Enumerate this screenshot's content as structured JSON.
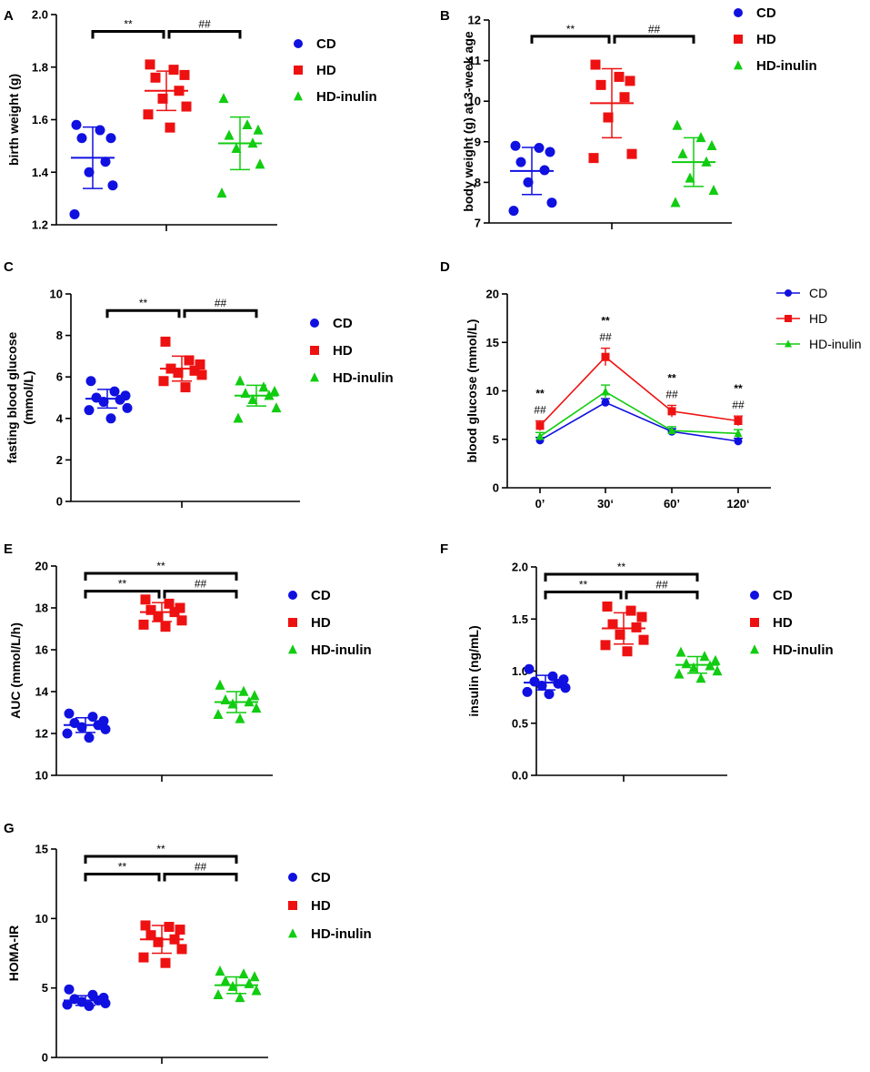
{
  "colors": {
    "CD": "#1010e0",
    "HD": "#ee1111",
    "HD-inulin": "#11cc11"
  },
  "chart_data": [
    {
      "id": "A",
      "type": "scatter",
      "panel_label": "A",
      "ylabel": "birth weight (g)",
      "ylim": [
        1.2,
        2.0
      ],
      "yticks": [
        "1.2",
        "1.4",
        "1.6",
        "1.8",
        "2.0"
      ],
      "legend": [
        "CD",
        "HD",
        "HD-inulin"
      ],
      "series": [
        {
          "name": "CD",
          "marker": "circle",
          "values": [
            1.58,
            1.56,
            1.53,
            1.53,
            1.44,
            1.4,
            1.35,
            1.24
          ],
          "mean": 1.455,
          "sd": 0.117
        },
        {
          "name": "HD",
          "marker": "square",
          "values": [
            1.81,
            1.79,
            1.77,
            1.76,
            1.71,
            1.68,
            1.65,
            1.62,
            1.57
          ],
          "mean": 1.71,
          "sd": 0.075
        },
        {
          "name": "HD-inulin",
          "marker": "triangle",
          "values": [
            1.68,
            1.58,
            1.56,
            1.54,
            1.51,
            1.49,
            1.43,
            1.32
          ],
          "mean": 1.51,
          "sd": 0.1
        }
      ],
      "brackets": [
        {
          "from": 0,
          "to": 1,
          "label": "**"
        },
        {
          "from": 1,
          "to": 2,
          "label": "##"
        }
      ]
    },
    {
      "id": "B",
      "type": "scatter",
      "panel_label": "B",
      "ylabel": "body weight (g) at 3-week age",
      "ylim": [
        7,
        12
      ],
      "yticks": [
        "7",
        "8",
        "9",
        "10",
        "11",
        "12"
      ],
      "legend": [
        "CD",
        "HD",
        "HD-inulin"
      ],
      "series": [
        {
          "name": "CD",
          "marker": "circle",
          "values": [
            8.9,
            8.85,
            8.75,
            8.5,
            8.3,
            8.0,
            7.5,
            7.3
          ],
          "mean": 8.28,
          "sd": 0.58
        },
        {
          "name": "HD",
          "marker": "square",
          "values": [
            10.9,
            10.6,
            10.5,
            10.4,
            10.1,
            9.6,
            8.7,
            8.6
          ],
          "mean": 9.95,
          "sd": 0.85
        },
        {
          "name": "HD-inulin",
          "marker": "triangle",
          "values": [
            9.4,
            9.1,
            8.9,
            8.7,
            8.5,
            8.1,
            7.8,
            7.5
          ],
          "mean": 8.5,
          "sd": 0.6
        }
      ],
      "brackets": [
        {
          "from": 0,
          "to": 1,
          "label": "**"
        },
        {
          "from": 1,
          "to": 2,
          "label": "##"
        }
      ]
    },
    {
      "id": "C",
      "type": "scatter",
      "panel_label": "C",
      "ylabel_lines": [
        "fasting blood glucose",
        "(mmol/L)"
      ],
      "ylim": [
        0,
        10
      ],
      "yticks": [
        "0",
        "2",
        "4",
        "6",
        "8",
        "10"
      ],
      "legend": [
        "CD",
        "HD",
        "HD-inulin"
      ],
      "series": [
        {
          "name": "CD",
          "marker": "circle",
          "values": [
            5.8,
            5.3,
            5.1,
            5.0,
            4.9,
            4.8,
            4.5,
            4.4,
            4.0
          ],
          "mean": 4.95,
          "sd": 0.45
        },
        {
          "name": "HD",
          "marker": "square",
          "values": [
            7.7,
            6.8,
            6.6,
            6.4,
            6.3,
            6.2,
            6.1,
            5.8,
            5.5
          ],
          "mean": 6.4,
          "sd": 0.6
        },
        {
          "name": "HD-inulin",
          "marker": "triangle",
          "values": [
            5.8,
            5.5,
            5.3,
            5.2,
            5.1,
            4.9,
            4.5,
            4.0
          ],
          "mean": 5.1,
          "sd": 0.5
        }
      ],
      "brackets": [
        {
          "from": 0,
          "to": 1,
          "label": "**"
        },
        {
          "from": 1,
          "to": 2,
          "label": "##"
        }
      ]
    },
    {
      "id": "D",
      "type": "line",
      "panel_label": "D",
      "ylabel": "blood glucose (mmol/L)",
      "ylim": [
        0,
        20
      ],
      "yticks": [
        "0",
        "5",
        "10",
        "15",
        "20"
      ],
      "categories": [
        "0’",
        "30‘",
        "60’",
        "120‘"
      ],
      "legend": [
        "CD",
        "HD",
        "HD-inulin"
      ],
      "series": [
        {
          "name": "CD",
          "marker": "circle",
          "values": [
            4.9,
            8.8,
            5.8,
            4.8
          ],
          "err": [
            0.3,
            0.4,
            0.3,
            0.3
          ]
        },
        {
          "name": "HD",
          "marker": "square",
          "values": [
            6.4,
            13.5,
            7.9,
            6.9
          ],
          "err": [
            0.5,
            0.9,
            0.6,
            0.5
          ]
        },
        {
          "name": "HD-inulin",
          "marker": "triangle",
          "values": [
            5.3,
            9.9,
            5.9,
            5.6
          ],
          "err": [
            0.4,
            0.7,
            0.4,
            0.4
          ]
        }
      ],
      "annotations": [
        {
          "category": 0,
          "star": "**",
          "hash": "##"
        },
        {
          "category": 1,
          "star": "**",
          "hash": "##"
        },
        {
          "category": 2,
          "star": "**",
          "hash": "##"
        },
        {
          "category": 3,
          "star": "**",
          "hash": "##"
        }
      ]
    },
    {
      "id": "E",
      "type": "scatter",
      "panel_label": "E",
      "ylabel": "AUC (mmol/L/h)",
      "ylim": [
        10,
        20
      ],
      "yticks": [
        "10",
        "12",
        "14",
        "16",
        "18",
        "20"
      ],
      "legend": [
        "CD",
        "HD",
        "HD-inulin"
      ],
      "series": [
        {
          "name": "CD",
          "marker": "circle",
          "values": [
            12.95,
            12.8,
            12.6,
            12.5,
            12.4,
            12.3,
            12.2,
            12.0,
            11.8
          ],
          "mean": 12.4,
          "sd": 0.35
        },
        {
          "name": "HD",
          "marker": "square",
          "values": [
            18.4,
            18.2,
            18.0,
            17.9,
            17.8,
            17.6,
            17.4,
            17.2,
            17.1
          ],
          "mean": 17.8,
          "sd": 0.45
        },
        {
          "name": "HD-inulin",
          "marker": "triangle",
          "values": [
            14.3,
            14.0,
            13.8,
            13.6,
            13.5,
            13.4,
            13.2,
            12.9,
            12.7
          ],
          "mean": 13.5,
          "sd": 0.5
        }
      ],
      "brackets": [
        {
          "from": 0,
          "to": 1,
          "label": "**"
        },
        {
          "from": 1,
          "to": 2,
          "label": "##"
        },
        {
          "from": 0,
          "to": 2,
          "label": "**",
          "top": true
        }
      ]
    },
    {
      "id": "F",
      "type": "scatter",
      "panel_label": "F",
      "ylabel": "insulin (ng/mL)",
      "ylim": [
        0,
        2.0
      ],
      "yticks": [
        "0.0",
        "0.5",
        "1.0",
        "1.5",
        "2.0"
      ],
      "legend": [
        "CD",
        "HD",
        "HD-inulin"
      ],
      "series": [
        {
          "name": "CD",
          "marker": "circle",
          "values": [
            1.02,
            0.95,
            0.92,
            0.9,
            0.88,
            0.86,
            0.84,
            0.8,
            0.78
          ],
          "mean": 0.89,
          "sd": 0.07
        },
        {
          "name": "HD",
          "marker": "square",
          "values": [
            1.62,
            1.58,
            1.52,
            1.45,
            1.42,
            1.35,
            1.3,
            1.25,
            1.19
          ],
          "mean": 1.41,
          "sd": 0.15
        },
        {
          "name": "HD-inulin",
          "marker": "triangle",
          "values": [
            1.18,
            1.14,
            1.1,
            1.07,
            1.05,
            1.03,
            1.0,
            0.97,
            0.93
          ],
          "mean": 1.06,
          "sd": 0.08
        }
      ],
      "brackets": [
        {
          "from": 0,
          "to": 1,
          "label": "**"
        },
        {
          "from": 1,
          "to": 2,
          "label": "##"
        },
        {
          "from": 0,
          "to": 2,
          "label": "**",
          "top": true
        }
      ]
    },
    {
      "id": "G",
      "type": "scatter",
      "panel_label": "G",
      "ylabel": "HOMA-IR",
      "ylim": [
        0,
        15
      ],
      "yticks": [
        "0",
        "5",
        "10",
        "15"
      ],
      "legend": [
        "CD",
        "HD",
        "HD-inulin"
      ],
      "series": [
        {
          "name": "CD",
          "marker": "circle",
          "values": [
            4.9,
            4.5,
            4.3,
            4.2,
            4.1,
            4.0,
            3.9,
            3.8,
            3.7
          ],
          "mean": 4.1,
          "sd": 0.35
        },
        {
          "name": "HD",
          "marker": "square",
          "values": [
            9.5,
            9.4,
            9.2,
            8.8,
            8.5,
            8.3,
            7.8,
            7.2,
            6.8
          ],
          "mean": 8.5,
          "sd": 1.0
        },
        {
          "name": "HD-inulin",
          "marker": "triangle",
          "values": [
            6.2,
            6.0,
            5.8,
            5.5,
            5.3,
            5.1,
            4.8,
            4.5,
            4.3
          ],
          "mean": 5.2,
          "sd": 0.6
        }
      ],
      "brackets": [
        {
          "from": 0,
          "to": 1,
          "label": "**"
        },
        {
          "from": 1,
          "to": 2,
          "label": "##"
        },
        {
          "from": 0,
          "to": 2,
          "label": "**",
          "top": true
        }
      ]
    }
  ]
}
